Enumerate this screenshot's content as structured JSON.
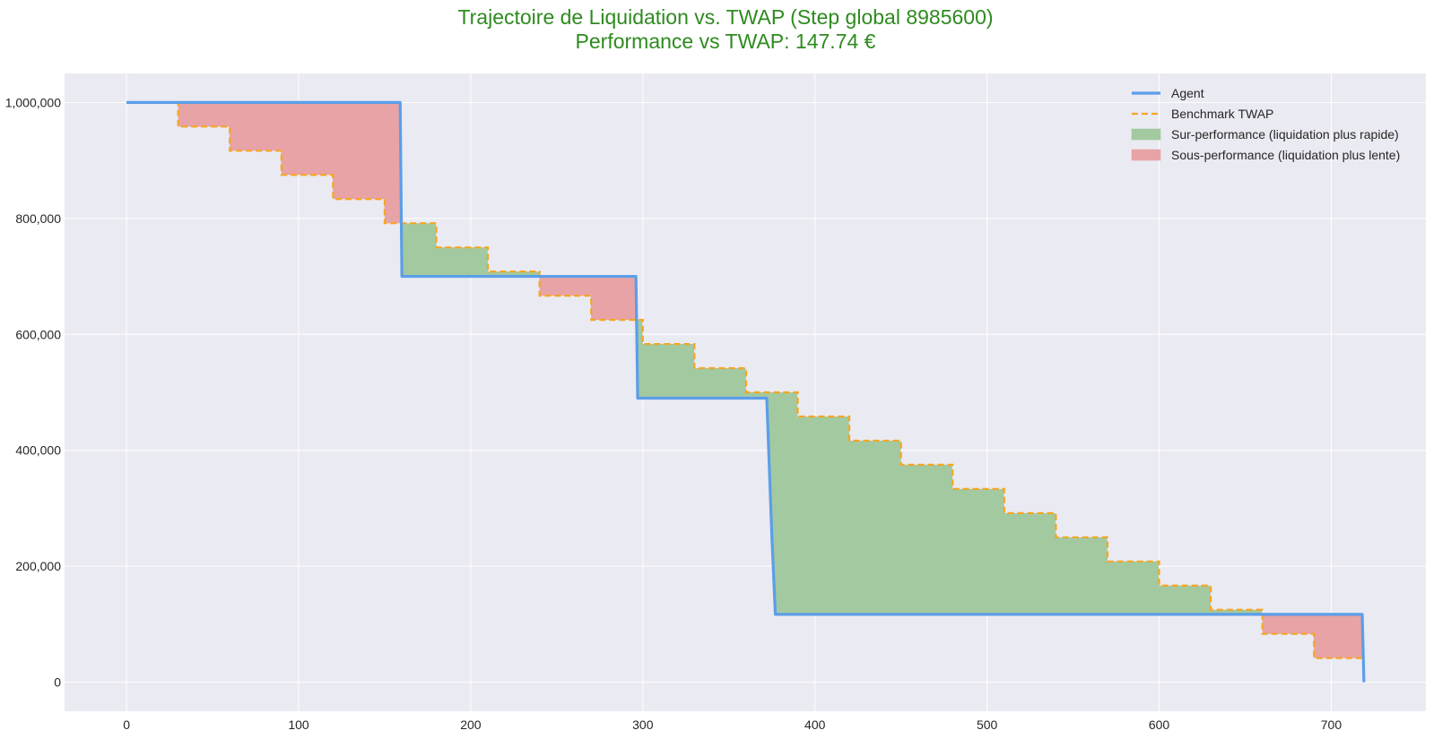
{
  "chart_data": {
    "type": "line",
    "title": "Trajectoire de Liquidation vs. TWAP (Step global 8985600)",
    "subtitle": "Performance vs TWAP: 147.74 €",
    "xlabel": "",
    "ylabel": "",
    "xlim": [
      -36,
      755
    ],
    "ylim": [
      -50000,
      1050000
    ],
    "grid": true,
    "legend_position": "top-right",
    "x_ticks": [
      0,
      100,
      200,
      300,
      400,
      500,
      600,
      700
    ],
    "x_tick_labels": [
      "0",
      "100",
      "200",
      "300",
      "400",
      "500",
      "600",
      "700"
    ],
    "y_ticks": [
      0,
      200000,
      400000,
      600000,
      800000,
      1000000
    ],
    "y_tick_labels": [
      "0",
      "200,000",
      "400,000",
      "600,000",
      "800,000",
      "1,000,000"
    ],
    "legend": [
      {
        "label": "Agent",
        "kind": "line",
        "color": "#5b9ee8"
      },
      {
        "label": "Benchmark TWAP",
        "kind": "dashed",
        "color": "#f5a623"
      },
      {
        "label": "Sur-performance (liquidation plus rapide)",
        "kind": "patch",
        "color": "#a3c9a0"
      },
      {
        "label": "Sous-performance (liquidation plus lente)",
        "kind": "patch",
        "color": "#e8a3a6"
      }
    ],
    "colors": {
      "agent": "#5b9ee8",
      "twap": "#f5a623",
      "over": "#a3c9a0",
      "under": "#e8a3a6",
      "plot_bg": "#eaeaf2",
      "grid": "#ffffff",
      "title": "#2e8b1f"
    },
    "series": [
      {
        "name": "Agent",
        "style": "solid",
        "x": [
          0,
          159,
          160,
          296,
          297,
          372,
          375,
          377,
          718,
          719
        ],
        "y": [
          1000000,
          1000000,
          700000,
          700000,
          490000,
          490000,
          250000,
          117000,
          117000,
          0
        ]
      },
      {
        "name": "Benchmark TWAP",
        "style": "dashed-steps",
        "step_width": 30,
        "start_x": 0,
        "end_x": 719,
        "levels": [
          1000000,
          958333,
          916667,
          875000,
          833333,
          791667,
          750000,
          708333,
          666667,
          625000,
          583333,
          541667,
          500000,
          458333,
          416667,
          375000,
          333333,
          291667,
          250000,
          208333,
          166667,
          125000,
          83333,
          41667,
          0
        ]
      }
    ]
  }
}
